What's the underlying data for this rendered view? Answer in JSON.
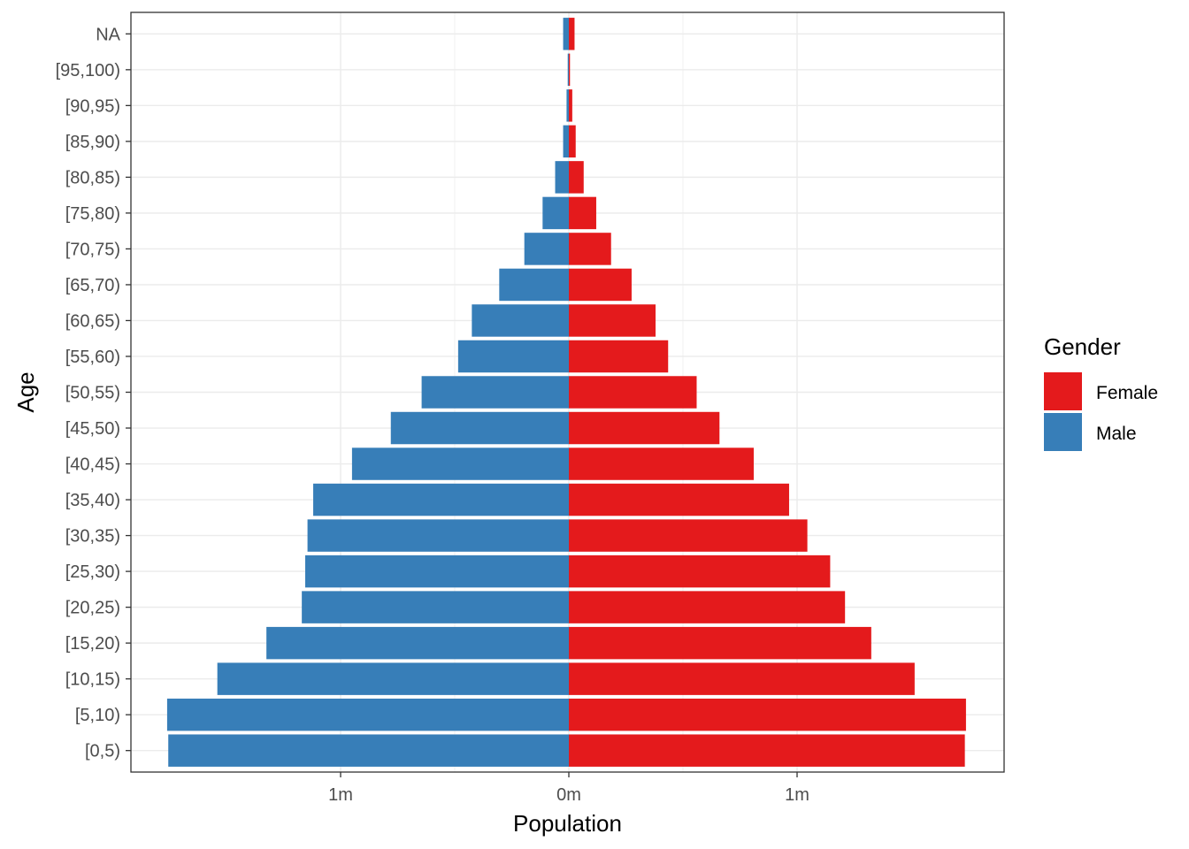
{
  "chart_data": {
    "type": "bar",
    "orientation": "horizontal",
    "layout": "population-pyramid",
    "xlabel": "Population",
    "ylabel": "Age",
    "xlim": [
      -1.93,
      1.93
    ],
    "x_unit": "millions",
    "x_ticks": [
      {
        "value": -1,
        "label": "1m"
      },
      {
        "value": 0,
        "label": "0m"
      },
      {
        "value": 1,
        "label": "1m"
      }
    ],
    "categories": [
      "[0,5)",
      "[5,10)",
      "[10,15)",
      "[15,20)",
      "[20,25)",
      "[25,30)",
      "[30,35)",
      "[35,40)",
      "[40,45)",
      "[45,50)",
      "[50,55)",
      "[55,60)",
      "[60,65)",
      "[65,70)",
      "[70,75)",
      "[75,80)",
      "[80,85)",
      "[85,90)",
      "[90,95)",
      "[95,100)",
      "NA"
    ],
    "series": [
      {
        "name": "Female",
        "color": "#e41a1c",
        "values": [
          1.735,
          1.74,
          1.515,
          1.325,
          1.21,
          1.145,
          1.045,
          0.965,
          0.81,
          0.66,
          0.56,
          0.435,
          0.38,
          0.275,
          0.185,
          0.12,
          0.065,
          0.03,
          0.015,
          0.005,
          0.025
        ]
      },
      {
        "name": "Male",
        "color": "#377eb8",
        "values": [
          1.755,
          1.76,
          1.54,
          1.325,
          1.17,
          1.155,
          1.145,
          1.12,
          0.95,
          0.78,
          0.645,
          0.485,
          0.425,
          0.305,
          0.195,
          0.115,
          0.06,
          0.025,
          0.01,
          0.005,
          0.025
        ]
      }
    ],
    "grid": true,
    "legend": {
      "title": "Gender",
      "position": "right"
    }
  }
}
